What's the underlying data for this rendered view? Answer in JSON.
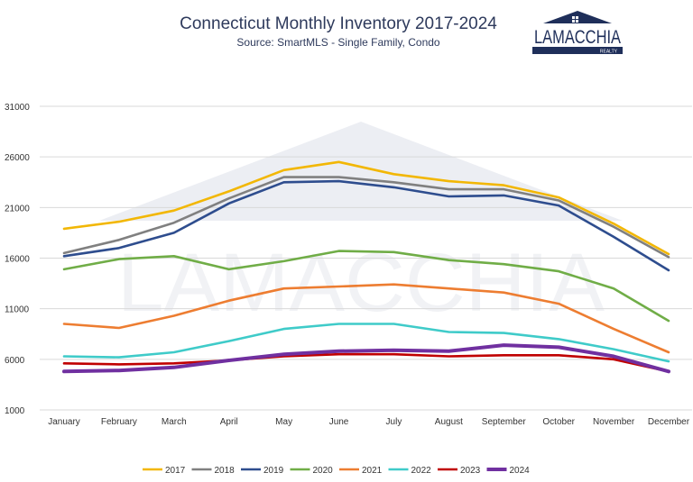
{
  "chart_data": {
    "type": "line",
    "title": "Connecticut Monthly Inventory 2017-2024",
    "subtitle": "Source: SmartMLS - Single Family, Condo",
    "xlabel": "",
    "ylabel": "",
    "categories": [
      "January",
      "February",
      "March",
      "April",
      "May",
      "June",
      "July",
      "August",
      "September",
      "October",
      "November",
      "December"
    ],
    "ylim": [
      1000,
      31000
    ],
    "yticks": [
      1000,
      6000,
      11000,
      16000,
      21000,
      26000,
      31000
    ],
    "grid": true,
    "legend_position": "bottom",
    "series": [
      {
        "name": "2017",
        "color": "#f2b705",
        "values": [
          18900,
          19600,
          20700,
          22600,
          24700,
          25500,
          24300,
          23600,
          23200,
          22000,
          19400,
          16400
        ]
      },
      {
        "name": "2018",
        "color": "#808080",
        "values": [
          16500,
          17800,
          19500,
          21900,
          24000,
          24000,
          23500,
          22800,
          22800,
          21700,
          19100,
          16100
        ]
      },
      {
        "name": "2019",
        "color": "#2e4d8e",
        "values": [
          16200,
          17000,
          18500,
          21400,
          23500,
          23600,
          23000,
          22100,
          22200,
          21200,
          18100,
          14800
        ]
      },
      {
        "name": "2020",
        "color": "#70ad47",
        "values": [
          14900,
          15900,
          16200,
          14900,
          15700,
          16700,
          16600,
          15800,
          15400,
          14700,
          13000,
          9800
        ]
      },
      {
        "name": "2021",
        "color": "#ed7d31",
        "values": [
          9500,
          9100,
          10300,
          11800,
          13000,
          13200,
          13400,
          13000,
          12600,
          11500,
          9000,
          6700
        ]
      },
      {
        "name": "2022",
        "color": "#3fcbc9",
        "values": [
          6300,
          6200,
          6700,
          7800,
          9000,
          9500,
          9500,
          8700,
          8600,
          8000,
          7000,
          5800
        ]
      },
      {
        "name": "2023",
        "color": "#c00000",
        "values": [
          5600,
          5500,
          5600,
          5900,
          6300,
          6500,
          6500,
          6300,
          6400,
          6400,
          6000,
          4800
        ]
      },
      {
        "name": "2024",
        "color": "#7030a0",
        "values": [
          4800,
          4900,
          5200,
          5900,
          6500,
          6800,
          6900,
          6800,
          7400,
          7200,
          6300,
          4800
        ]
      }
    ]
  },
  "branding": {
    "logo_text": "LAMACCHIA",
    "logo_subtext": "REALTY",
    "watermark_text": "LAMACCHIA"
  }
}
